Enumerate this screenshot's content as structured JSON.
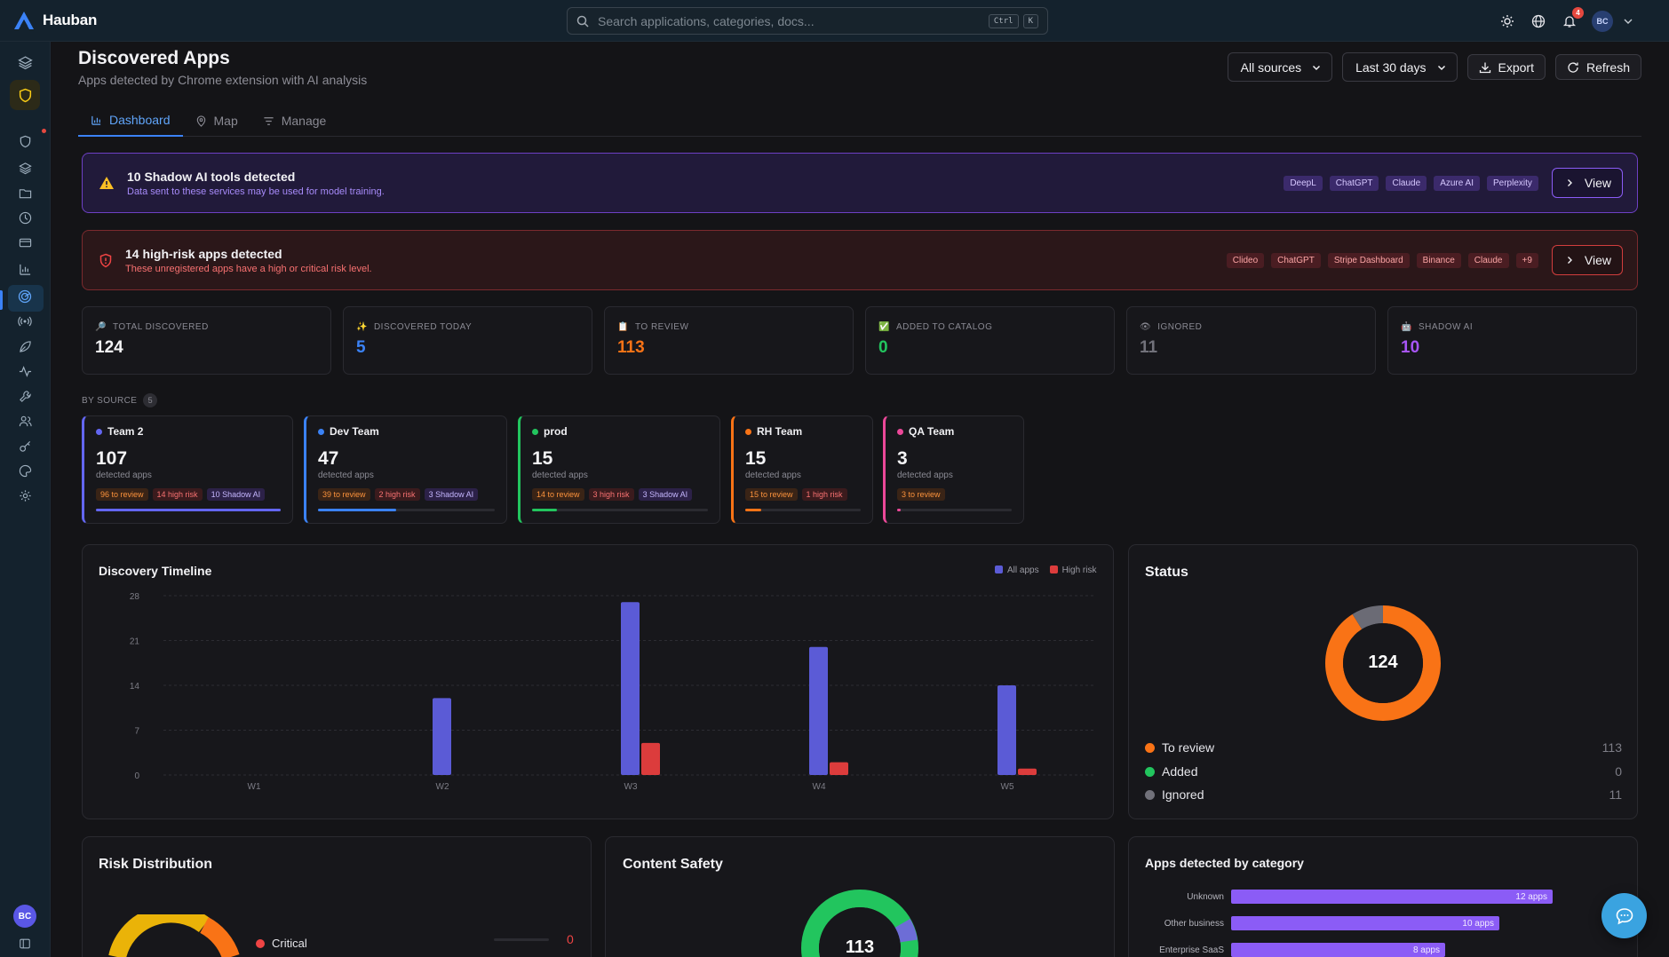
{
  "app": {
    "name": "Hauban"
  },
  "search": {
    "placeholder": "Search applications, categories, docs...",
    "kbd1": "Ctrl",
    "kbd2": "K"
  },
  "topbar": {
    "notifications": "4",
    "user_initials": "BC"
  },
  "header": {
    "title": "Discovered Apps",
    "subtitle": "Apps detected by Chrome extension with AI analysis",
    "source_select": "All sources",
    "range_select": "Last 30 days",
    "export_label": "Export",
    "refresh_label": "Refresh"
  },
  "tabs": [
    {
      "label": "Dashboard"
    },
    {
      "label": "Map"
    },
    {
      "label": "Manage"
    }
  ],
  "alerts": {
    "shadow": {
      "title": "10 Shadow AI tools detected",
      "desc": "Data sent to these services may be used for model training.",
      "chips": [
        "DeepL",
        "ChatGPT",
        "Claude",
        "Azure AI",
        "Perplexity"
      ],
      "view_label": "View"
    },
    "risk": {
      "title": "14 high-risk apps detected",
      "desc": "These unregistered apps have a high or critical risk level.",
      "chips": [
        "Clideo",
        "ChatGPT",
        "Stripe Dashboard",
        "Binance",
        "Claude",
        "+9"
      ],
      "view_label": "View"
    }
  },
  "stats": [
    {
      "label": "TOTAL DISCOVERED",
      "value": "124",
      "color": "#f4f4f6"
    },
    {
      "label": "DISCOVERED TODAY",
      "value": "5",
      "color": "#3b82f6"
    },
    {
      "label": "TO REVIEW",
      "value": "113",
      "color": "#f97316"
    },
    {
      "label": "ADDED TO CATALOG",
      "value": "0",
      "color": "#22c55e"
    },
    {
      "label": "IGNORED",
      "value": "11",
      "color": "#71717a"
    },
    {
      "label": "SHADOW AI",
      "value": "10",
      "color": "#a855f7"
    }
  ],
  "by_source": {
    "label": "BY SOURCE",
    "count": "5"
  },
  "sources": [
    {
      "name": "Team 2",
      "count": "107",
      "label": "detected apps",
      "color": "#6366f1",
      "fill": 1.0,
      "chips": [
        "96 to review",
        "14 high risk",
        "10 Shadow AI"
      ]
    },
    {
      "name": "Dev Team",
      "count": "47",
      "label": "detected apps",
      "color": "#3b82f6",
      "fill": 0.44,
      "chips": [
        "39 to review",
        "2 high risk",
        "3 Shadow AI"
      ]
    },
    {
      "name": "prod",
      "count": "15",
      "label": "detected apps",
      "color": "#22c55e",
      "fill": 0.14,
      "chips": [
        "14 to review",
        "3 high risk",
        "3 Shadow AI"
      ]
    },
    {
      "name": "RH Team",
      "count": "15",
      "label": "detected apps",
      "color": "#f97316",
      "fill": 0.14,
      "chips": [
        "15 to review",
        "1 high risk"
      ]
    },
    {
      "name": "QA Team",
      "count": "3",
      "label": "detected apps",
      "color": "#ec4899",
      "fill": 0.03,
      "chips": [
        "3 to review"
      ]
    }
  ],
  "timeline": {
    "title": "Discovery Timeline",
    "legend": [
      "All apps",
      "High risk"
    ]
  },
  "status": {
    "title": "Status",
    "total": "124",
    "rows": [
      {
        "label": "To review",
        "value": "113",
        "color": "#f97316"
      },
      {
        "label": "Added",
        "value": "0",
        "color": "#22c55e"
      },
      {
        "label": "Ignored",
        "value": "11",
        "color": "#71717a"
      }
    ]
  },
  "risk_distribution": {
    "title": "Risk Distribution",
    "first_label": "Critical",
    "first_value": "0"
  },
  "content_safety": {
    "title": "Content Safety",
    "center": "113"
  },
  "categories": {
    "title": "Apps detected by category",
    "rows": [
      {
        "label": "Unknown",
        "value": "12 apps",
        "n": 12
      },
      {
        "label": "Other business",
        "value": "10 apps",
        "n": 10
      },
      {
        "label": "Enterprise SaaS",
        "value": "8 apps",
        "n": 8
      }
    ]
  },
  "chart_data": {
    "type": "bar",
    "title": "Discovery Timeline",
    "categories": [
      "W1",
      "W2",
      "W3",
      "W4",
      "W5"
    ],
    "series": [
      {
        "name": "All apps",
        "values": [
          0,
          12,
          27,
          20,
          14
        ],
        "color": "#5b5bd6"
      },
      {
        "name": "High risk",
        "values": [
          0,
          0,
          5,
          2,
          1
        ],
        "color": "#dc3c3c"
      }
    ],
    "yticks": [
      0,
      7,
      14,
      21,
      28
    ],
    "ylim": [
      0,
      28
    ],
    "grid": true,
    "legend": "top-right"
  }
}
